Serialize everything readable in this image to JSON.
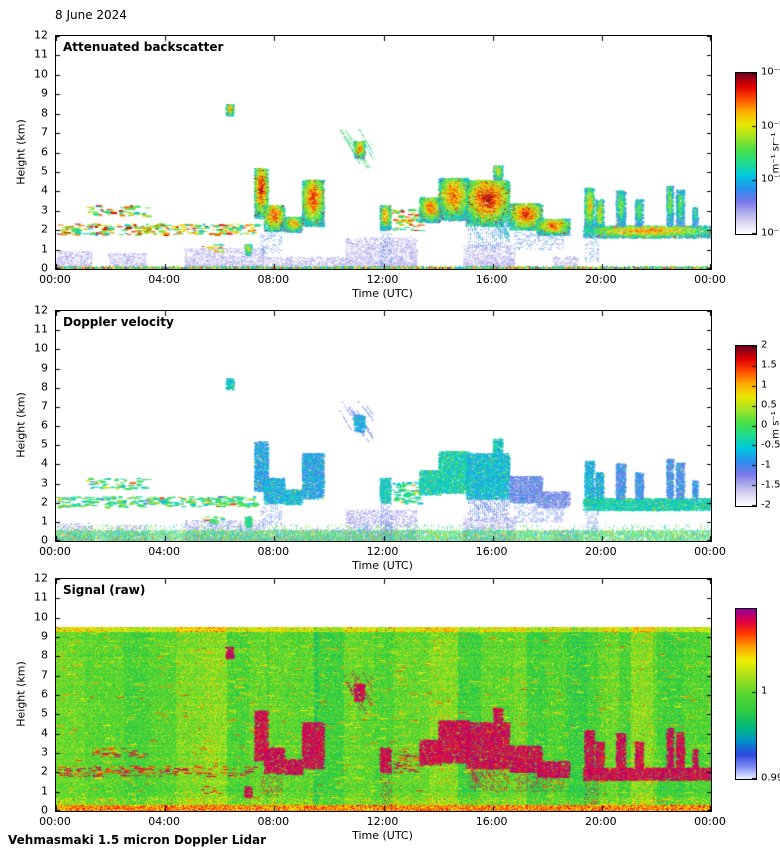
{
  "page": {
    "date_label": "8 June 2024",
    "footer_label": "Vehmasmaki 1.5 micron Doppler Lidar",
    "background_color": "#ffffff",
    "text_color": "#000000"
  },
  "chart_data": [
    {
      "type": "heatmap",
      "title": "Attenuated backscatter",
      "xlabel": "Time (UTC)",
      "ylabel": "Height (km)",
      "x_ticks": [
        "00:00",
        "04:00",
        "08:00",
        "12:00",
        "16:00",
        "20:00",
        "00:00"
      ],
      "x_range_hours": [
        0,
        24
      ],
      "ylim": [
        0,
        12
      ],
      "y_ticks": [
        0,
        1,
        2,
        3,
        4,
        5,
        6,
        7,
        8,
        9,
        10,
        11,
        12
      ],
      "grid": false,
      "colorbar": {
        "scale": "log",
        "min": "1e-7",
        "max": "1e-4",
        "units": "m⁻¹ sr⁻¹",
        "ticks": [
          {
            "label": "10⁻⁴",
            "pos": 1.0
          },
          {
            "label": "10⁻⁵",
            "pos": 0.6667
          },
          {
            "label": "10⁻⁶",
            "pos": 0.3333
          },
          {
            "label": "10⁻⁷",
            "pos": 0.0
          }
        ]
      },
      "features": [
        {
          "type": "dashes",
          "t": [
            0.0,
            7.3
          ],
          "h": [
            1.8,
            2.35
          ],
          "i": 0.8,
          "v": -0.1,
          "d": 0.45
        },
        {
          "type": "dashes",
          "t": [
            1.1,
            3.3
          ],
          "h": [
            2.75,
            3.3
          ],
          "i": 0.7,
          "v": -0.1,
          "d": 0.3
        },
        {
          "type": "dashes",
          "t": [
            5.3,
            6.1
          ],
          "h": [
            0.9,
            1.3
          ],
          "i": 0.55,
          "v": 0.0,
          "d": 0.3
        },
        {
          "type": "cloud",
          "t": [
            6.2,
            6.5
          ],
          "h": [
            7.9,
            8.5
          ],
          "i": 0.8,
          "v": -0.5
        },
        {
          "type": "cloud",
          "t": [
            6.9,
            7.15
          ],
          "h": [
            0.7,
            1.3
          ],
          "i": 0.7,
          "v": -0.2
        },
        {
          "type": "cloud",
          "t": [
            7.25,
            7.75
          ],
          "h": [
            2.6,
            5.2
          ],
          "i": 0.95,
          "v": -0.8
        },
        {
          "type": "cloud",
          "t": [
            7.6,
            8.35
          ],
          "h": [
            1.95,
            3.3
          ],
          "i": 0.9,
          "v": -0.7
        },
        {
          "type": "cloud",
          "t": [
            8.35,
            9.0
          ],
          "h": [
            1.9,
            2.7
          ],
          "i": 0.8,
          "v": -0.6
        },
        {
          "type": "cloud",
          "t": [
            9.0,
            9.8
          ],
          "h": [
            2.2,
            4.6
          ],
          "i": 0.9,
          "v": -0.8
        },
        {
          "type": "streaks",
          "t": [
            10.25,
            11.6
          ],
          "h": [
            5.4,
            7.3
          ],
          "i": 0.6,
          "v": -1.2
        },
        {
          "type": "cloud",
          "t": [
            10.9,
            11.3
          ],
          "h": [
            5.7,
            6.6
          ],
          "i": 0.85,
          "v": -0.8
        },
        {
          "type": "column",
          "t": [
            11.85,
            12.25
          ],
          "h": [
            2.0,
            3.3
          ],
          "i": 0.8,
          "v": -0.5
        },
        {
          "type": "dashes",
          "t": [
            12.3,
            13.3
          ],
          "h": [
            2.0,
            3.1
          ],
          "i": 0.6,
          "v": -0.3,
          "d": 0.4
        },
        {
          "type": "cloud",
          "t": [
            13.3,
            14.1
          ],
          "h": [
            2.4,
            3.7
          ],
          "i": 0.85,
          "v": -0.4
        },
        {
          "type": "cloud",
          "t": [
            14.0,
            15.1
          ],
          "h": [
            2.5,
            4.7
          ],
          "i": 0.85,
          "v": -0.4
        },
        {
          "type": "cloud",
          "t": [
            15.0,
            16.6
          ],
          "h": [
            2.2,
            4.6
          ],
          "i": 0.95,
          "v": -0.6
        },
        {
          "type": "streaks",
          "t": [
            15.1,
            16.6
          ],
          "h": [
            1.3,
            2.4
          ],
          "i": 0.45,
          "v": -1.2
        },
        {
          "type": "cloud",
          "t": [
            16.0,
            16.35
          ],
          "h": [
            4.6,
            5.35
          ],
          "i": 0.7,
          "v": -0.5
        },
        {
          "type": "cloud",
          "t": [
            16.6,
            17.8
          ],
          "h": [
            2.0,
            3.4
          ],
          "i": 0.9,
          "v": -1.2
        },
        {
          "type": "cloud",
          "t": [
            17.6,
            18.8
          ],
          "h": [
            1.75,
            2.6
          ],
          "i": 0.85,
          "v": -1.3
        },
        {
          "type": "column",
          "t": [
            19.35,
            19.7
          ],
          "h": [
            1.9,
            4.2
          ],
          "i": 0.75,
          "v": -0.7
        },
        {
          "type": "column",
          "t": [
            19.75,
            20.05
          ],
          "h": [
            1.9,
            3.6
          ],
          "i": 0.7,
          "v": -0.7
        },
        {
          "type": "layer",
          "t": [
            19.3,
            24.0
          ],
          "h": [
            1.6,
            2.25
          ],
          "i": 0.8,
          "v": -0.4
        },
        {
          "type": "column",
          "t": [
            20.5,
            20.85
          ],
          "h": [
            2.2,
            4.05
          ],
          "i": 0.6,
          "v": -1.0
        },
        {
          "type": "column",
          "t": [
            21.2,
            21.5
          ],
          "h": [
            2.2,
            3.6
          ],
          "i": 0.55,
          "v": -1.0
        },
        {
          "type": "column",
          "t": [
            22.35,
            22.6
          ],
          "h": [
            2.2,
            4.3
          ],
          "i": 0.6,
          "v": -1.0
        },
        {
          "type": "column",
          "t": [
            22.7,
            23.0
          ],
          "h": [
            2.2,
            4.1
          ],
          "i": 0.55,
          "v": -1.0
        },
        {
          "type": "column",
          "t": [
            23.3,
            23.5
          ],
          "h": [
            2.2,
            3.2
          ],
          "i": 0.5,
          "v": -0.9
        }
      ],
      "haze": [
        {
          "t": [
            0.0,
            1.3
          ],
          "h": [
            0,
            0.9
          ]
        },
        {
          "t": [
            1.9,
            3.3
          ],
          "h": [
            0,
            0.8
          ]
        },
        {
          "t": [
            4.7,
            7.6
          ],
          "h": [
            0,
            1.05
          ]
        },
        {
          "t": [
            7.6,
            10.6
          ],
          "h": [
            0,
            0.6
          ]
        },
        {
          "t": [
            10.6,
            13.2
          ],
          "h": [
            0,
            1.6
          ]
        },
        {
          "t": [
            14.9,
            16.8
          ],
          "h": [
            0,
            1.2
          ]
        },
        {
          "t": [
            18.2,
            19.1
          ],
          "h": [
            0,
            0.6
          ]
        }
      ],
      "precip_streaks": [
        {
          "t": [
            7.5,
            8.3
          ],
          "h": [
            0.8,
            1.9
          ]
        },
        {
          "t": [
            11.9,
            12.3
          ],
          "h": [
            0.1,
            2.0
          ]
        },
        {
          "t": [
            15.1,
            16.5
          ],
          "h": [
            1.1,
            2.2
          ]
        },
        {
          "t": [
            16.8,
            18.6
          ],
          "h": [
            1.0,
            1.9
          ]
        },
        {
          "t": [
            19.4,
            19.9
          ],
          "h": [
            0.4,
            1.9
          ]
        }
      ]
    },
    {
      "type": "heatmap",
      "title": "Doppler velocity",
      "xlabel": "Time (UTC)",
      "ylabel": "Height (km)",
      "x_ticks": [
        "00:00",
        "04:00",
        "08:00",
        "12:00",
        "16:00",
        "20:00",
        "00:00"
      ],
      "x_range_hours": [
        0,
        24
      ],
      "ylim": [
        0,
        12
      ],
      "y_ticks": [
        0,
        1,
        2,
        3,
        4,
        5,
        6,
        7,
        8,
        9,
        10,
        11,
        12
      ],
      "grid": false,
      "colorbar": {
        "scale": "linear",
        "min": -2,
        "max": 2,
        "units": "m s⁻¹",
        "ticks": [
          {
            "label": "2",
            "pos": 1.0
          },
          {
            "label": "1.5",
            "pos": 0.875
          },
          {
            "label": "1",
            "pos": 0.75
          },
          {
            "label": "0.5",
            "pos": 0.625
          },
          {
            "label": "0",
            "pos": 0.5
          },
          {
            "label": "-0.5",
            "pos": 0.375
          },
          {
            "label": "-1",
            "pos": 0.25
          },
          {
            "label": "-1.5",
            "pos": 0.125
          },
          {
            "label": "-2",
            "pos": 0.0
          }
        ]
      },
      "note": "velocities (m s⁻¹) for each echo region are the v fields of chart_data[0].features; near-surface 0-0.5 km noise band around 0 m s⁻¹"
    },
    {
      "type": "heatmap",
      "title": "Signal (raw)",
      "xlabel": "Time (UTC)",
      "ylabel": "Height (km)",
      "x_ticks": [
        "00:00",
        "04:00",
        "08:00",
        "12:00",
        "16:00",
        "20:00",
        "00:00"
      ],
      "x_range_hours": [
        0,
        24
      ],
      "ylim": [
        0,
        12
      ],
      "y_ticks": [
        0,
        1,
        2,
        3,
        4,
        5,
        6,
        7,
        8,
        9,
        10,
        11,
        12
      ],
      "grid": false,
      "data_top_km": 9.55,
      "colorbar": {
        "scale": "linear",
        "ticks": [
          {
            "label": "1",
            "pos": 0.51
          },
          {
            "label": "0.99",
            "pos": 0.0
          }
        ]
      },
      "note": "green-yellow background noise 0-9.55 km with blocky column variations; bright orange surface band 0-0.35 km; cloud/aerosol echoes of chart_data[0].features appear as high (purple) signal"
    }
  ],
  "render": {
    "seed": 20240608,
    "colormaps": {
      "backscatter": [
        [
          0.0,
          "#ffffff"
        ],
        [
          0.05,
          "#e8e4f8"
        ],
        [
          0.12,
          "#b8b4ec"
        ],
        [
          0.2,
          "#7878e8"
        ],
        [
          0.28,
          "#2890f0"
        ],
        [
          0.36,
          "#00c8e0"
        ],
        [
          0.44,
          "#20dc90"
        ],
        [
          0.52,
          "#48e048"
        ],
        [
          0.6,
          "#a0e428"
        ],
        [
          0.68,
          "#e8e800"
        ],
        [
          0.76,
          "#ffb000"
        ],
        [
          0.84,
          "#ff5000"
        ],
        [
          0.92,
          "#e00000"
        ],
        [
          1.0,
          "#700020"
        ]
      ],
      "signal": [
        [
          0.0,
          "#e8eeff"
        ],
        [
          0.06,
          "#8898f8"
        ],
        [
          0.14,
          "#3048e0"
        ],
        [
          0.22,
          "#0090c8"
        ],
        [
          0.3,
          "#00b880"
        ],
        [
          0.4,
          "#30cc40"
        ],
        [
          0.5,
          "#58d830"
        ],
        [
          0.6,
          "#a8e020"
        ],
        [
          0.7,
          "#f0ee00"
        ],
        [
          0.78,
          "#ffa000"
        ],
        [
          0.86,
          "#ff3800"
        ],
        [
          0.93,
          "#e00048"
        ],
        [
          1.0,
          "#980098"
        ]
      ]
    }
  }
}
